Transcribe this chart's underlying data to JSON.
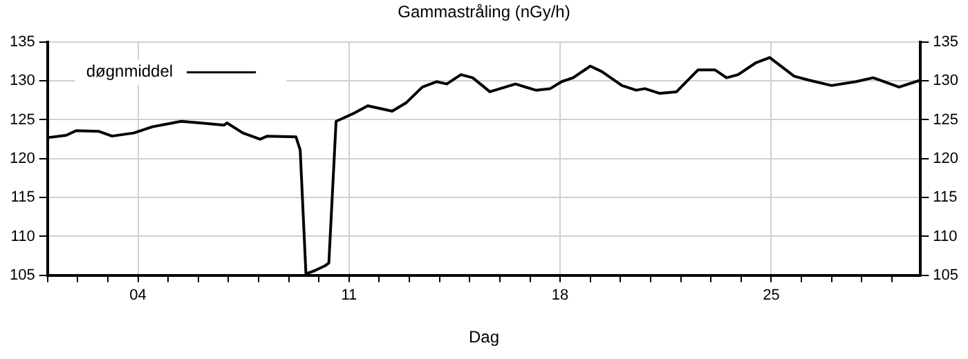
{
  "chart_data": {
    "type": "line",
    "title": "Gammastråling (nGy/h)",
    "xlabel": "Dag",
    "x": [
      1.0,
      1.62,
      1.95,
      2.71,
      3.14,
      3.86,
      4.48,
      5.43,
      6.05,
      6.86,
      6.95,
      7.48,
      8.05,
      8.29,
      9.24,
      9.38,
      9.57,
      9.86,
      10.19,
      10.33,
      10.57,
      11.14,
      11.62,
      12.43,
      12.9,
      13.43,
      13.9,
      14.24,
      14.71,
      15.1,
      15.67,
      16.52,
      17.19,
      17.67,
      18.05,
      18.43,
      19.0,
      19.38,
      20.05,
      20.52,
      20.81,
      21.29,
      21.86,
      22.57,
      23.14,
      23.52,
      23.9,
      24.48,
      24.95,
      25.76,
      26.24,
      27.0,
      27.81,
      28.38,
      29.24,
      29.95
    ],
    "series": [
      {
        "name": "døgnmiddel",
        "color": "#000000",
        "values": [
          122.7,
          123.0,
          123.6,
          123.5,
          122.9,
          123.3,
          124.1,
          124.8,
          124.6,
          124.3,
          124.6,
          123.3,
          122.5,
          122.9,
          122.8,
          121.1,
          105.2,
          105.6,
          106.2,
          106.6,
          124.8,
          125.8,
          126.8,
          126.1,
          127.2,
          129.2,
          129.9,
          129.6,
          130.8,
          130.4,
          128.6,
          129.6,
          128.8,
          129.0,
          129.9,
          130.4,
          131.9,
          131.2,
          129.4,
          128.8,
          129.0,
          128.4,
          128.6,
          131.4,
          131.4,
          130.4,
          130.8,
          132.3,
          133.0,
          130.6,
          130.1,
          129.4,
          129.9,
          130.4,
          129.2,
          130.1
        ]
      }
    ],
    "xlim": [
      1,
      29.95
    ],
    "xticks": [
      {
        "value": 1,
        "label": null
      },
      {
        "value": 2,
        "label": null
      },
      {
        "value": 3,
        "label": null
      },
      {
        "value": 4,
        "label": "04"
      },
      {
        "value": 5,
        "label": null
      },
      {
        "value": 6,
        "label": null
      },
      {
        "value": 7,
        "label": null
      },
      {
        "value": 8,
        "label": null
      },
      {
        "value": 9,
        "label": null
      },
      {
        "value": 10,
        "label": null
      },
      {
        "value": 11,
        "label": "11"
      },
      {
        "value": 12,
        "label": null
      },
      {
        "value": 13,
        "label": null
      },
      {
        "value": 14,
        "label": null
      },
      {
        "value": 15,
        "label": null
      },
      {
        "value": 16,
        "label": null
      },
      {
        "value": 17,
        "label": null
      },
      {
        "value": 18,
        "label": "18"
      },
      {
        "value": 19,
        "label": null
      },
      {
        "value": 20,
        "label": null
      },
      {
        "value": 21,
        "label": null
      },
      {
        "value": 22,
        "label": null
      },
      {
        "value": 23,
        "label": null
      },
      {
        "value": 24,
        "label": null
      },
      {
        "value": 25,
        "label": "25"
      },
      {
        "value": 26,
        "label": null
      },
      {
        "value": 27,
        "label": null
      },
      {
        "value": 28,
        "label": null
      },
      {
        "value": 29,
        "label": null
      }
    ],
    "ylim": [
      105,
      135
    ],
    "yticks": [
      105,
      110,
      115,
      120,
      125,
      130,
      135
    ],
    "y2lim": [
      105,
      135
    ],
    "y2ticks": [
      105,
      110,
      115,
      120,
      125,
      130,
      135
    ],
    "grid": true,
    "legend": "top left",
    "marker": "none",
    "line_style": "solid"
  }
}
